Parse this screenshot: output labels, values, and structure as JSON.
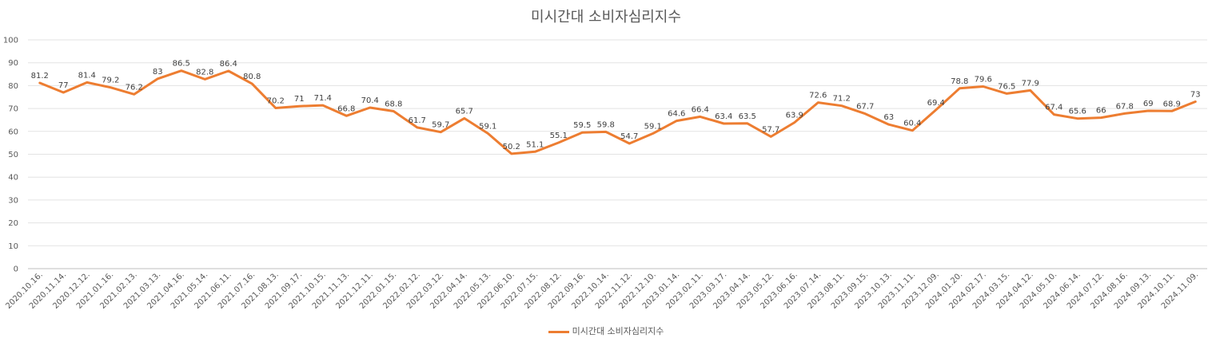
{
  "chart_data": {
    "type": "line",
    "title": "미시간대 소비자심리지수",
    "ylim": [
      0,
      100
    ],
    "yticks": [
      0,
      10,
      20,
      30,
      40,
      50,
      60,
      70,
      80,
      90,
      100
    ],
    "grid": true,
    "legend_position": "bottom",
    "categories": [
      "2020.10.16.",
      "2020.11.14.",
      "2020.12.12.",
      "2021.01.16.",
      "2021.02.13.",
      "2021.03.13.",
      "2021.04.16.",
      "2021.05.14.",
      "2021.06.11.",
      "2021.07.16.",
      "2021.08.13.",
      "2021.09.17.",
      "2021.10.15.",
      "2021.11.13.",
      "2021.12.11.",
      "2022.01.15.",
      "2022.02.12.",
      "2022.03.12.",
      "2022.04.14.",
      "2022.05.13.",
      "2022.06.10.",
      "2022.07.15.",
      "2022.08.12.",
      "2022.09.16.",
      "2022.10.14.",
      "2022.11.12.",
      "2022.12.10.",
      "2023.01.14.",
      "2023.02.11.",
      "2023.03.17.",
      "2023.04.14.",
      "2023.05.12.",
      "2023.06.16.",
      "2023.07.14.",
      "2023.08.11.",
      "2023.09.15.",
      "2023.10.13.",
      "2023.11.11.",
      "2023.12.09.",
      "2024.01.20.",
      "2024.02.17.",
      "2024.03.15.",
      "2024.04.12.",
      "2024.05.10.",
      "2024.06.14.",
      "2024.07.12.",
      "2024.08.16.",
      "2024.09.13.",
      "2024.10.11.",
      "2024.11.09."
    ],
    "series": [
      {
        "name": "미시간대 소비자심리지수",
        "color": "#ED7D31",
        "values": [
          81.2,
          77,
          81.4,
          79.2,
          76.2,
          83,
          86.5,
          82.8,
          86.4,
          80.8,
          70.2,
          71,
          71.4,
          66.8,
          70.4,
          68.8,
          61.7,
          59.7,
          65.7,
          59.1,
          50.2,
          51.1,
          55.1,
          59.5,
          59.8,
          54.7,
          59.1,
          64.6,
          66.4,
          63.4,
          63.5,
          57.7,
          63.9,
          72.6,
          71.2,
          67.7,
          63,
          60.4,
          69.4,
          78.8,
          79.6,
          76.5,
          77.9,
          67.4,
          65.6,
          66,
          67.8,
          69,
          68.9,
          73
        ]
      }
    ]
  }
}
